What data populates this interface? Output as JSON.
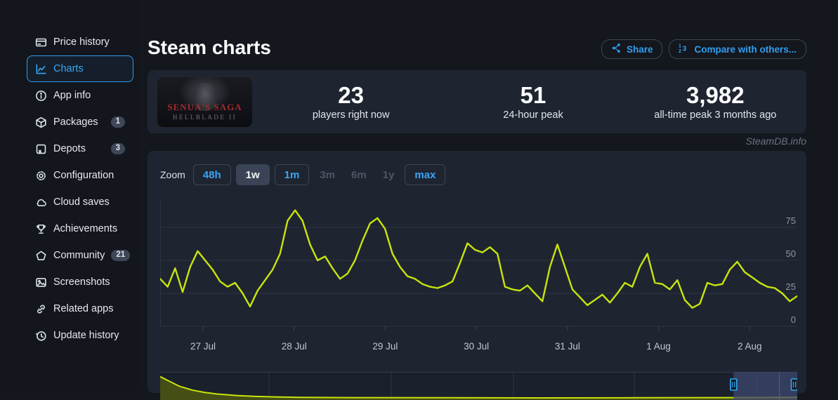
{
  "watermark": "SteamDB.info",
  "sidebar": {
    "items": [
      {
        "label": "Price history",
        "icon": "credit-card-icon",
        "active": false
      },
      {
        "label": "Charts",
        "icon": "chart-line-icon",
        "active": true
      },
      {
        "label": "App info",
        "icon": "info-circle-icon",
        "active": false
      },
      {
        "label": "Packages",
        "icon": "package-cube-icon",
        "badge": "1",
        "active": false
      },
      {
        "label": "Depots",
        "icon": "depot-box-icon",
        "badge": "3",
        "active": false
      },
      {
        "label": "Configuration",
        "icon": "gear-icon",
        "active": false
      },
      {
        "label": "Cloud saves",
        "icon": "cloud-icon",
        "active": false
      },
      {
        "label": "Achievements",
        "icon": "trophy-icon",
        "active": false
      },
      {
        "label": "Community",
        "icon": "community-shield-icon",
        "badge": "21",
        "active": false
      },
      {
        "label": "Screenshots",
        "icon": "image-icon",
        "active": false
      },
      {
        "label": "Related apps",
        "icon": "link-icon",
        "active": false
      },
      {
        "label": "Update history",
        "icon": "history-clock-icon",
        "active": false
      }
    ]
  },
  "header": {
    "title": "Steam charts",
    "share_button": "Share",
    "compare_button": "Compare with others..."
  },
  "stats": {
    "capsule": {
      "line1": "SENUA'S SAGA",
      "line2": "HELLBLADE II"
    },
    "items": [
      {
        "value": "23",
        "label": "players right now"
      },
      {
        "value": "51",
        "label": "24-hour peak"
      },
      {
        "value": "3,982",
        "label": "all-time peak 3 months ago"
      }
    ]
  },
  "toolbar": {
    "zoom_label": "Zoom",
    "buttons": [
      {
        "label": "48h",
        "state": "enabled"
      },
      {
        "label": "1w",
        "state": "selected"
      },
      {
        "label": "1m",
        "state": "enabled"
      },
      {
        "label": "3m",
        "state": "disabled"
      },
      {
        "label": "6m",
        "state": "disabled"
      },
      {
        "label": "1y",
        "state": "disabled"
      },
      {
        "label": "max",
        "state": "enabled"
      }
    ]
  },
  "chart_data": {
    "type": "line",
    "title": "Steam charts - concurrent players",
    "legend": "none",
    "grid": true,
    "y_axis": {
      "side": "right",
      "ticks": [
        0,
        25,
        50,
        75
      ],
      "visible_max": 95
    },
    "x_axis": {
      "tick_labels": [
        "27 Jul",
        "28 Jul",
        "29 Jul",
        "30 Jul",
        "31 Jul",
        "1 Aug",
        "2 Aug"
      ],
      "points_per_day": 12
    },
    "series": [
      {
        "name": "players",
        "color": "#c9e40c",
        "values": [
          36,
          30,
          44,
          26,
          45,
          57,
          50,
          43,
          34,
          30,
          33,
          25,
          15,
          27,
          35,
          43,
          55,
          80,
          88,
          80,
          62,
          50,
          53,
          44,
          36,
          40,
          50,
          65,
          78,
          82,
          74,
          55,
          45,
          38,
          36,
          32,
          30,
          29,
          31,
          34,
          48,
          63,
          58,
          56,
          60,
          55,
          30,
          28,
          27,
          31,
          25,
          19,
          45,
          62,
          45,
          28,
          22,
          16,
          20,
          24,
          18,
          25,
          33,
          30,
          45,
          55,
          33,
          32,
          28,
          35,
          20,
          14,
          17,
          33,
          31,
          32,
          43,
          49,
          41,
          37,
          33,
          30,
          29,
          25,
          19,
          23
        ]
      }
    ],
    "navigator": {
      "selected_zoom": "1w",
      "profile": [
        [
          0,
          0.92
        ],
        [
          0.015,
          0.72
        ],
        [
          0.03,
          0.52
        ],
        [
          0.05,
          0.36
        ],
        [
          0.07,
          0.26
        ],
        [
          0.09,
          0.19
        ],
        [
          0.12,
          0.13
        ],
        [
          0.15,
          0.09
        ],
        [
          0.18,
          0.07
        ],
        [
          0.22,
          0.05
        ],
        [
          0.3,
          0.04
        ],
        [
          0.45,
          0.035
        ],
        [
          0.6,
          0.03
        ],
        [
          0.75,
          0.035
        ],
        [
          0.9,
          0.04
        ],
        [
          1,
          0.05
        ]
      ],
      "selection_fraction": [
        0.9,
        1.0
      ]
    }
  },
  "colors": {
    "accent_blue": "#2f9ff0",
    "line_green": "#c9e40c",
    "panel_bg": "#1e2531",
    "page_bg": "#14171e",
    "selection_fill": "#3f4770",
    "handle_blue": "#2fa8ef",
    "gridline": "#2d3442"
  }
}
